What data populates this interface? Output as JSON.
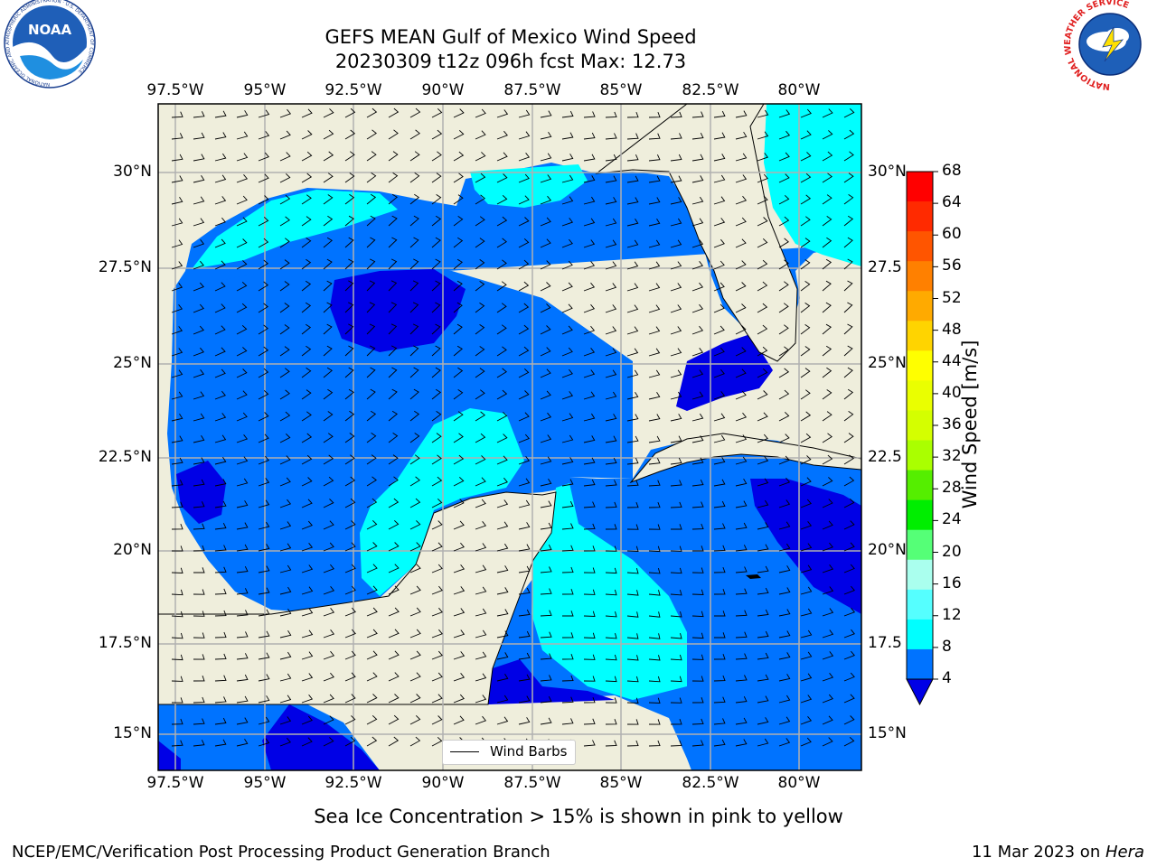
{
  "header": {
    "title_line1": "GEFS MEAN Gulf of Mexico Wind Speed",
    "title_line2": "20230309 t12z 096h fcst   Max: 12.73",
    "noaa_logo_text": "NOAA",
    "noaa_ring_text": "NATIONAL OCEANIC AND ATMOSPHERIC ADMINISTRATION · U.S. DEPARTMENT OF COMMERCE",
    "nws_ring_text": "NATIONAL WEATHER SERVICE"
  },
  "map": {
    "lon_labels": [
      "97.5°W",
      "95°W",
      "92.5°W",
      "90°W",
      "87.5°W",
      "85°W",
      "82.5°W",
      "80°W"
    ],
    "lat_labels_left": [
      "30°N",
      "27.5°N",
      "25°N",
      "22.5°N",
      "20°N",
      "17.5°N",
      "15°N"
    ],
    "lat_labels_right": [
      "30°N",
      "27.5",
      "25°N",
      "22.5",
      "20°N",
      "17.5",
      "15°N"
    ],
    "legend_label": "Wind Barbs",
    "colors": {
      "land": "#efeedc",
      "level_4_8": "#0073ff",
      "level_8_12": "#00ffff",
      "below_4": "#0000e6"
    }
  },
  "colorbar": {
    "label": "Wind Speed [m/s]",
    "ticks": [
      "68",
      "64",
      "60",
      "56",
      "52",
      "48",
      "44",
      "40",
      "36",
      "32",
      "28",
      "24",
      "20",
      "16",
      "12",
      "8",
      "4"
    ],
    "colors": [
      "#ff0000",
      "#ff2a00",
      "#ff5500",
      "#ff8000",
      "#ffaa00",
      "#ffd400",
      "#ffff00",
      "#eaff00",
      "#d4ff00",
      "#aaff00",
      "#55ee00",
      "#00ee00",
      "#55ff77",
      "#aaffee",
      "#55ffff",
      "#00ffff",
      "#0073ff"
    ],
    "extend_color": "#0000e6"
  },
  "footer": {
    "note": "Sea Ice Concentration > 15% is shown in pink to yellow",
    "left": "NCEP/EMC/Verification Post Processing Product Generation Branch",
    "date": "11 Mar 2023 on ",
    "machine": "Hera"
  }
}
